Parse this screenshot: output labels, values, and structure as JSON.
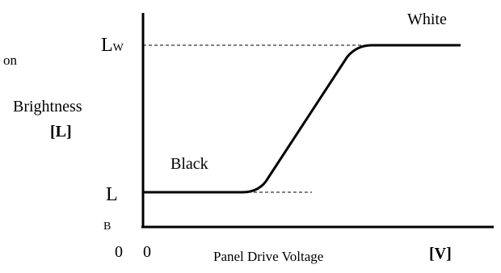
{
  "chart_data": {
    "type": "line",
    "xlabel": "Panel Drive Voltage",
    "xunit": "[V]",
    "ylabel": "Brightness",
    "yunit": "[L]",
    "left_fragment": "on",
    "x_origin_label": "0",
    "y_origin_label": "0",
    "levels": {
      "white": {
        "label": "White",
        "level_main": "L",
        "level_sub": "W"
      },
      "black": {
        "label": "Black",
        "level_main": "L",
        "level_sub": "B"
      }
    },
    "grid": false,
    "legend": "none"
  }
}
